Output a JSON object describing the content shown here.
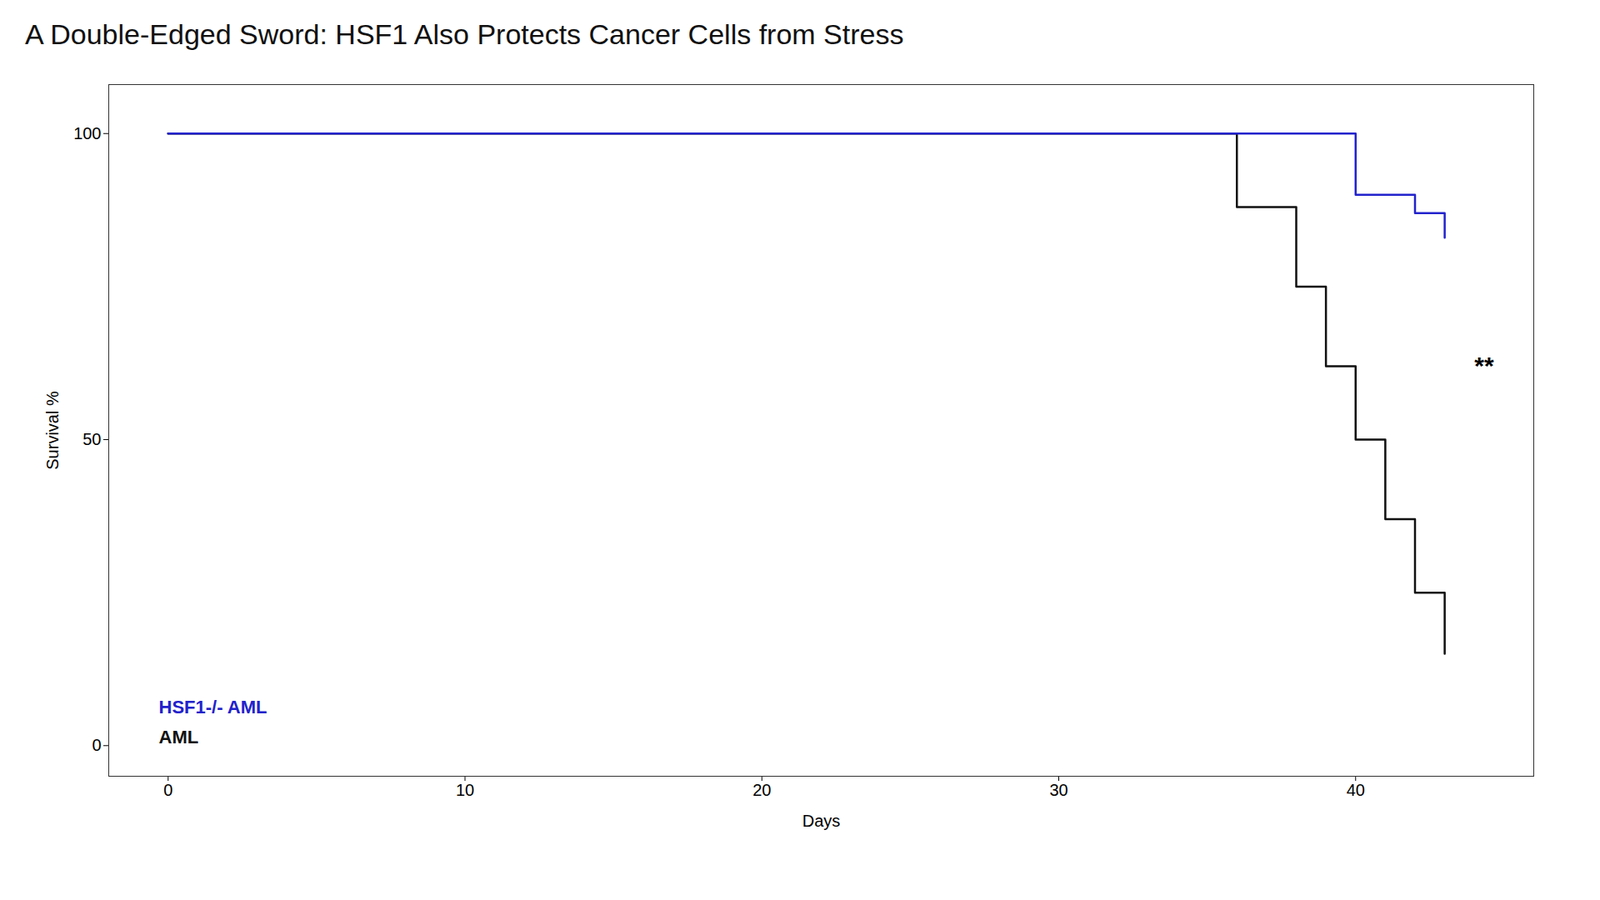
{
  "chart_data": {
    "type": "line",
    "title": "A Double-Edged Sword: HSF1 Also Protects Cancer Cells from Stress",
    "x_label": "Days",
    "y_label": "Survival %",
    "series": [
      {
        "name": "AML",
        "color": "#111111",
        "line_style": "step",
        "x": [
          0,
          33,
          36,
          38,
          39,
          40,
          41,
          42,
          43
        ],
        "values": [
          100,
          100,
          88,
          75,
          62,
          50,
          37,
          25,
          15
        ]
      },
      {
        "name": "HSF1-/- AML",
        "color": "#2222cc",
        "line_style": "step",
        "x": [
          0,
          38,
          40,
          42,
          43
        ],
        "values": [
          100,
          100,
          90,
          87,
          83
        ]
      }
    ],
    "xlim": [
      -2,
      46
    ],
    "ylim": [
      -5,
      108
    ],
    "xticks": [
      0,
      10,
      20,
      30,
      40
    ],
    "yticks": [
      0,
      50,
      100
    ],
    "grid": false,
    "legend": "lower left",
    "annotations": [
      {
        "text": "**",
        "x": 44,
        "y": 62
      }
    ]
  }
}
